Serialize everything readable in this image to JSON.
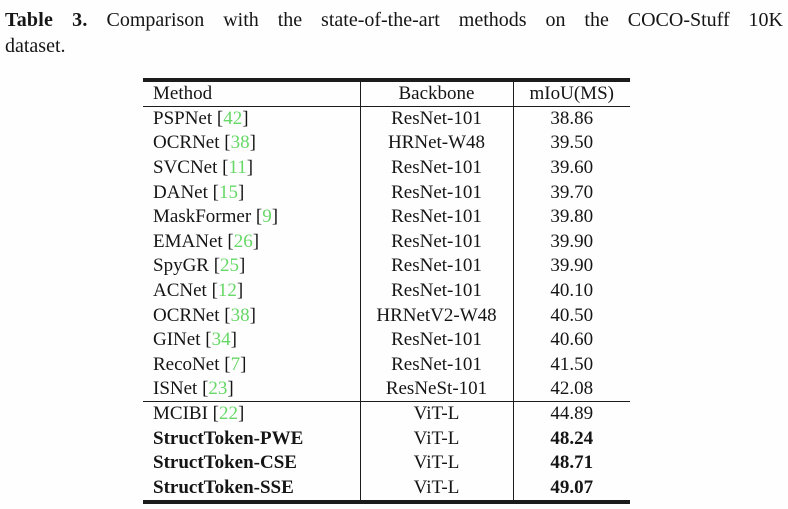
{
  "caption": {
    "label": "Table 3.",
    "line1": "Comparison with the state-of-the-art methods on the COCO-Stuff 10K",
    "line2": "dataset."
  },
  "table": {
    "columns": [
      "Method",
      "Backbone",
      "mIoU(MS)"
    ],
    "citation_color": "#67d867",
    "groups": [
      {
        "rows": [
          {
            "method": "PSPNet",
            "cite": "42",
            "backbone": "ResNet-101",
            "miou": "38.86",
            "bold": false
          },
          {
            "method": "OCRNet",
            "cite": "38",
            "backbone": "HRNet-W48",
            "miou": "39.50",
            "bold": false
          },
          {
            "method": "SVCNet",
            "cite": "11",
            "backbone": "ResNet-101",
            "miou": "39.60",
            "bold": false
          },
          {
            "method": "DANet",
            "cite": "15",
            "backbone": "ResNet-101",
            "miou": "39.70",
            "bold": false
          },
          {
            "method": "MaskFormer",
            "cite": "9",
            "backbone": "ResNet-101",
            "miou": "39.80",
            "bold": false
          },
          {
            "method": "EMANet",
            "cite": "26",
            "backbone": "ResNet-101",
            "miou": "39.90",
            "bold": false
          },
          {
            "method": "SpyGR",
            "cite": "25",
            "backbone": "ResNet-101",
            "miou": "39.90",
            "bold": false
          },
          {
            "method": "ACNet",
            "cite": "12",
            "backbone": "ResNet-101",
            "miou": "40.10",
            "bold": false
          },
          {
            "method": "OCRNet",
            "cite": "38",
            "backbone": "HRNetV2-W48",
            "miou": "40.50",
            "bold": false
          },
          {
            "method": "GINet",
            "cite": "34",
            "backbone": "ResNet-101",
            "miou": "40.60",
            "bold": false
          },
          {
            "method": "RecoNet",
            "cite": "7",
            "backbone": "ResNet-101",
            "miou": "41.50",
            "bold": false
          },
          {
            "method": "ISNet",
            "cite": "23",
            "backbone": "ResNeSt-101",
            "miou": "42.08",
            "bold": false
          }
        ]
      },
      {
        "rows": [
          {
            "method": "MCIBI",
            "cite": "22",
            "backbone": "ViT-L",
            "miou": "44.89",
            "bold": false
          },
          {
            "method": "StructToken-PWE",
            "cite": null,
            "backbone": "ViT-L",
            "miou": "48.24",
            "bold": true
          },
          {
            "method": "StructToken-CSE",
            "cite": null,
            "backbone": "ViT-L",
            "miou": "48.71",
            "bold": true
          },
          {
            "method": "StructToken-SSE",
            "cite": null,
            "backbone": "ViT-L",
            "miou": "49.07",
            "bold": true
          }
        ]
      }
    ]
  }
}
